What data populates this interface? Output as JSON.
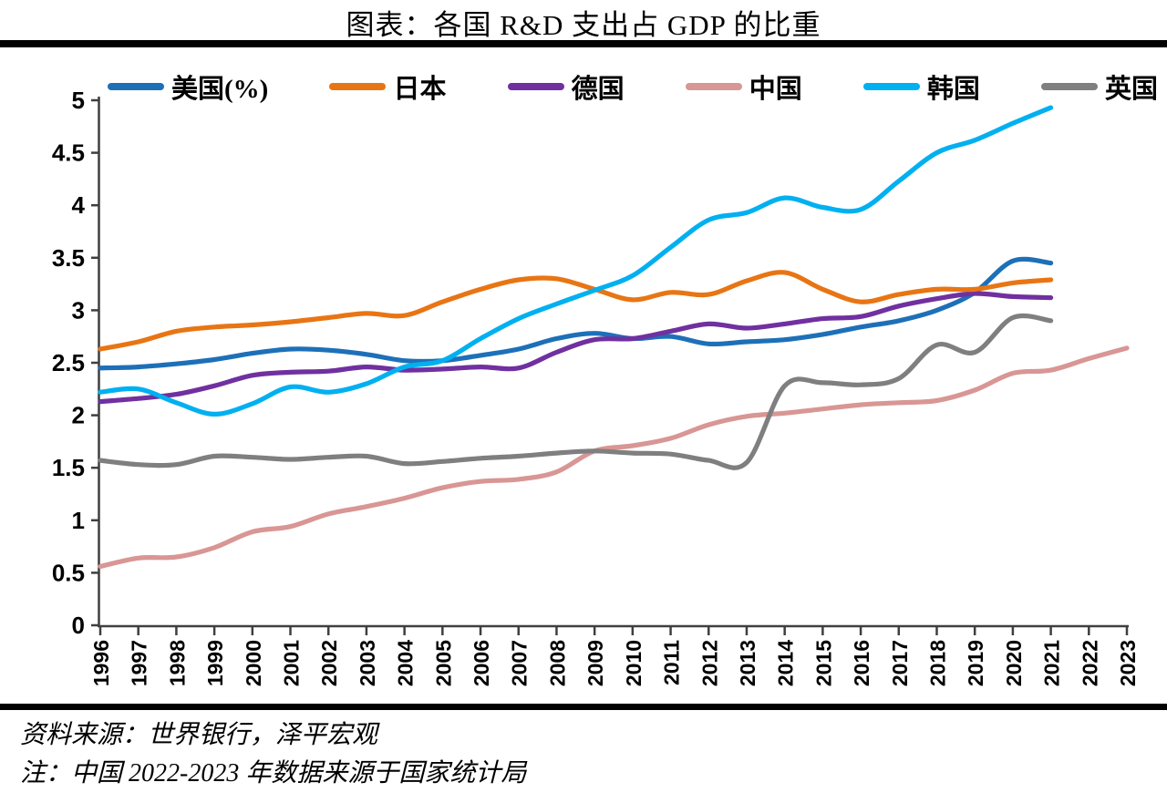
{
  "title": "图表：各国 R&D 支出占 GDP 的比重",
  "notes": {
    "source": "资料来源：世界银行，泽平宏观",
    "note": "注：中国 2022-2023 年数据来源于国家统计局"
  },
  "chart_data": {
    "type": "line",
    "title": "图表：各国 R&D 支出占 GDP 的比重",
    "xlabel": "",
    "ylabel": "",
    "ylim": [
      0,
      5
    ],
    "grid": false,
    "legend_position": "top",
    "y_tick_labels": [
      "0",
      "0.5",
      "1",
      "1.5",
      "2",
      "2.5",
      "3",
      "3.5",
      "4",
      "4.5",
      "5"
    ],
    "x": [
      1996,
      1997,
      1998,
      1999,
      2000,
      2001,
      2002,
      2003,
      2004,
      2005,
      2006,
      2007,
      2008,
      2009,
      2010,
      2011,
      2012,
      2013,
      2014,
      2015,
      2016,
      2017,
      2018,
      2019,
      2020,
      2021,
      2022,
      2023
    ],
    "series": [
      {
        "name": "美国(%)",
        "color": "#1D70B8",
        "values": [
          2.45,
          2.46,
          2.49,
          2.53,
          2.59,
          2.63,
          2.62,
          2.58,
          2.52,
          2.52,
          2.57,
          2.63,
          2.73,
          2.78,
          2.73,
          2.75,
          2.68,
          2.7,
          2.72,
          2.77,
          2.84,
          2.9,
          3.0,
          3.17,
          3.47,
          3.45
        ]
      },
      {
        "name": "日本",
        "color": "#E87514",
        "values": [
          2.63,
          2.7,
          2.8,
          2.84,
          2.86,
          2.89,
          2.93,
          2.97,
          2.95,
          3.08,
          3.2,
          3.29,
          3.3,
          3.2,
          3.1,
          3.17,
          3.15,
          3.28,
          3.36,
          3.2,
          3.08,
          3.15,
          3.2,
          3.2,
          3.26,
          3.29
        ]
      },
      {
        "name": "德国",
        "color": "#7030A0",
        "values": [
          2.13,
          2.16,
          2.2,
          2.28,
          2.38,
          2.41,
          2.42,
          2.46,
          2.43,
          2.44,
          2.46,
          2.45,
          2.6,
          2.72,
          2.73,
          2.8,
          2.87,
          2.83,
          2.87,
          2.92,
          2.94,
          3.04,
          3.11,
          3.16,
          3.13,
          3.12
        ]
      },
      {
        "name": "中国",
        "color": "#D89694",
        "values": [
          0.56,
          0.64,
          0.65,
          0.74,
          0.89,
          0.94,
          1.06,
          1.13,
          1.21,
          1.31,
          1.37,
          1.39,
          1.46,
          1.66,
          1.71,
          1.78,
          1.91,
          1.99,
          2.02,
          2.06,
          2.1,
          2.12,
          2.14,
          2.24,
          2.4,
          2.43,
          2.54,
          2.64
        ]
      },
      {
        "name": "韩国",
        "color": "#00B0F0",
        "values": [
          2.22,
          2.25,
          2.12,
          2.01,
          2.11,
          2.27,
          2.22,
          2.3,
          2.46,
          2.52,
          2.73,
          2.92,
          3.06,
          3.19,
          3.33,
          3.6,
          3.86,
          3.93,
          4.07,
          3.98,
          3.96,
          4.23,
          4.5,
          4.62,
          4.78,
          4.93
        ]
      },
      {
        "name": "英国",
        "color": "#7F7F7F",
        "values": [
          1.57,
          1.53,
          1.53,
          1.61,
          1.6,
          1.58,
          1.6,
          1.61,
          1.54,
          1.56,
          1.59,
          1.61,
          1.64,
          1.66,
          1.64,
          1.63,
          1.57,
          1.55,
          2.28,
          2.31,
          2.29,
          2.35,
          2.67,
          2.6,
          2.93,
          2.9
        ]
      }
    ]
  }
}
